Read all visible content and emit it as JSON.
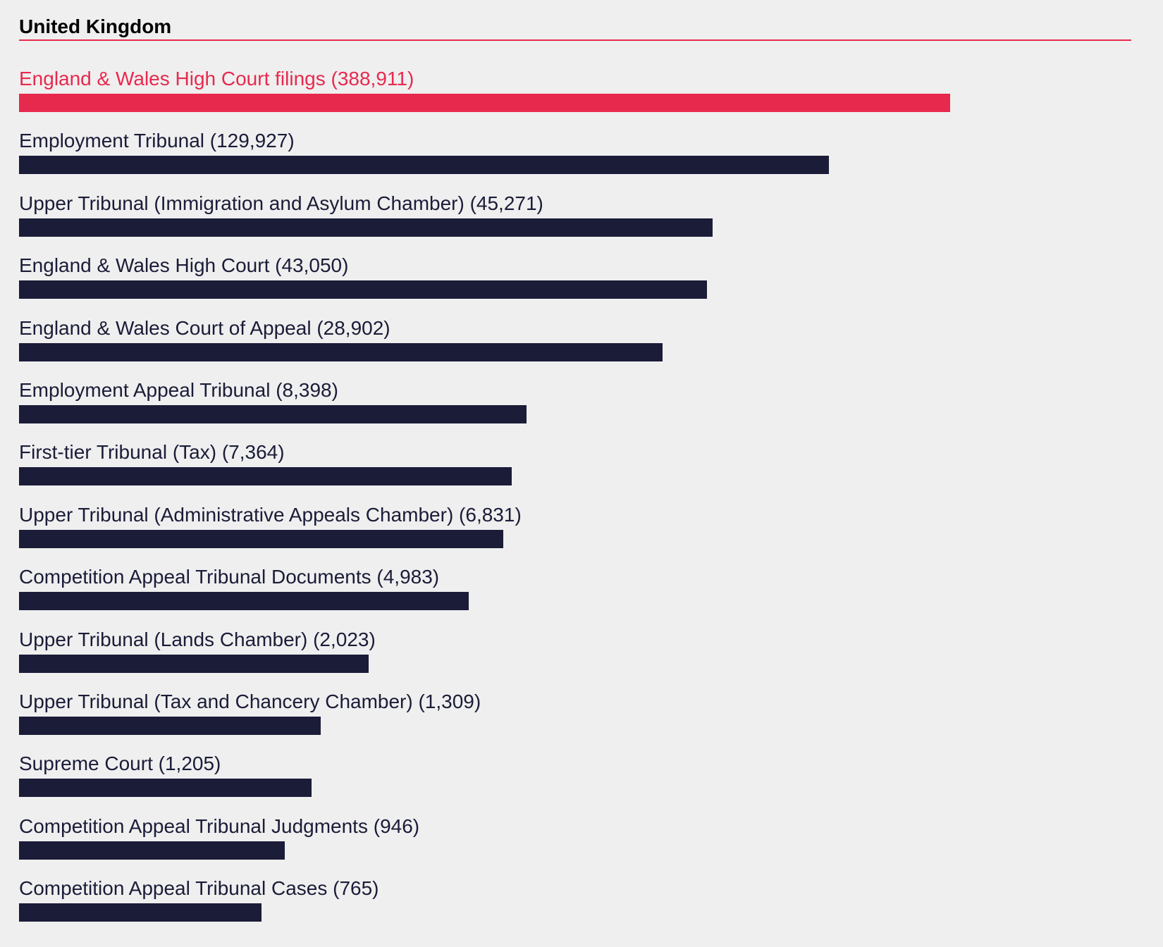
{
  "colors": {
    "accent": "#e8294e",
    "bar": "#1a1c38",
    "background": "#efefef"
  },
  "chart_data": {
    "type": "bar",
    "orientation": "horizontal",
    "title": "United Kingdom",
    "scale": "log",
    "grid": false,
    "legend": "none",
    "categories": [
      "England & Wales High Court filings",
      "Employment Tribunal",
      "Upper Tribunal (Immigration and Asylum Chamber)",
      "England & Wales High Court",
      "England & Wales Court of Appeal",
      "Employment Appeal Tribunal",
      "First-tier Tribunal (Tax)",
      "Upper Tribunal (Administrative Appeals Chamber)",
      "Competition Appeal Tribunal Documents",
      "Upper Tribunal (Lands Chamber)",
      "Upper Tribunal (Tax and Chancery Chamber)",
      "Supreme Court",
      "Competition Appeal Tribunal Judgments",
      "Competition Appeal Tribunal Cases"
    ],
    "values": [
      388911,
      129927,
      45271,
      43050,
      28902,
      8398,
      7364,
      6831,
      4983,
      2023,
      1309,
      1205,
      946,
      765
    ],
    "labels": [
      "England & Wales High Court filings (388,911)",
      "Employment Tribunal (129,927)",
      "Upper Tribunal (Immigration and Asylum Chamber) (45,271)",
      "England & Wales High Court (43,050)",
      "England & Wales Court of Appeal (28,902)",
      "Employment Appeal Tribunal (8,398)",
      "First-tier Tribunal (Tax) (7,364)",
      "Upper Tribunal (Administrative Appeals Chamber) (6,831)",
      "Competition Appeal Tribunal Documents (4,983)",
      "Upper Tribunal (Lands Chamber) (2,023)",
      "Upper Tribunal (Tax and Chancery Chamber) (1,309)",
      "Supreme Court (1,205)",
      "Competition Appeal Tribunal Judgments (946)",
      "Competition Appeal Tribunal Cases (765)"
    ],
    "highlighted_index": 0
  }
}
